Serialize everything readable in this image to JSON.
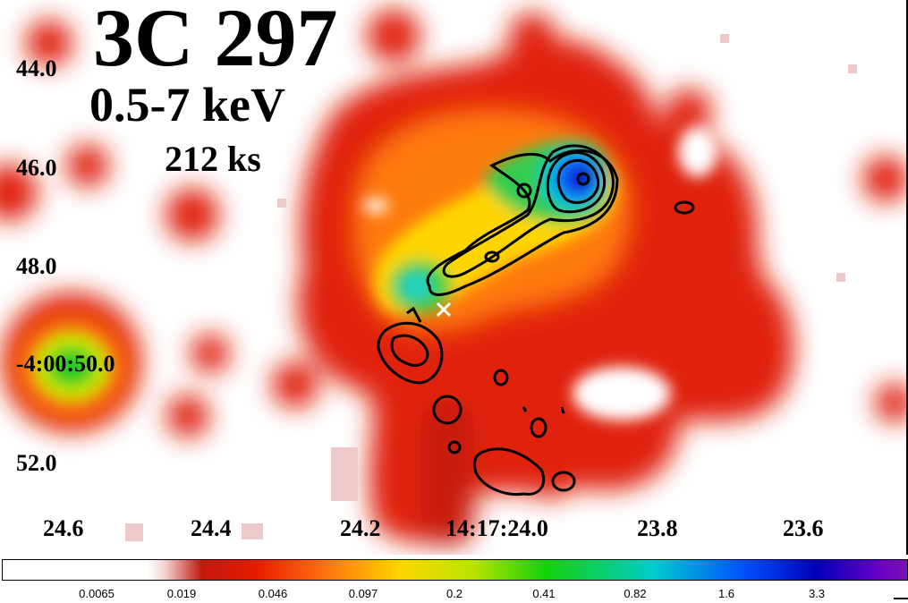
{
  "image": {
    "title": "3C 297",
    "band": "0.5-7 keV",
    "exposure": "212 ks",
    "dec_labels": [
      "44.0",
      "46.0",
      "48.0",
      "-4:00:50.0",
      "52.0"
    ],
    "ra_labels": [
      "24.6",
      "24.4",
      "24.2",
      "14:17:24.0",
      "23.8",
      "23.6"
    ],
    "colorbar_ticks": [
      "0.0065",
      "0.019",
      "0.046",
      "0.097",
      "0.2",
      "0.41",
      "0.82",
      "1.6",
      "3.3"
    ],
    "marker": "×",
    "colors": {
      "background": "#ffffff",
      "contours": "#000000",
      "marker": "#ffffff"
    }
  }
}
